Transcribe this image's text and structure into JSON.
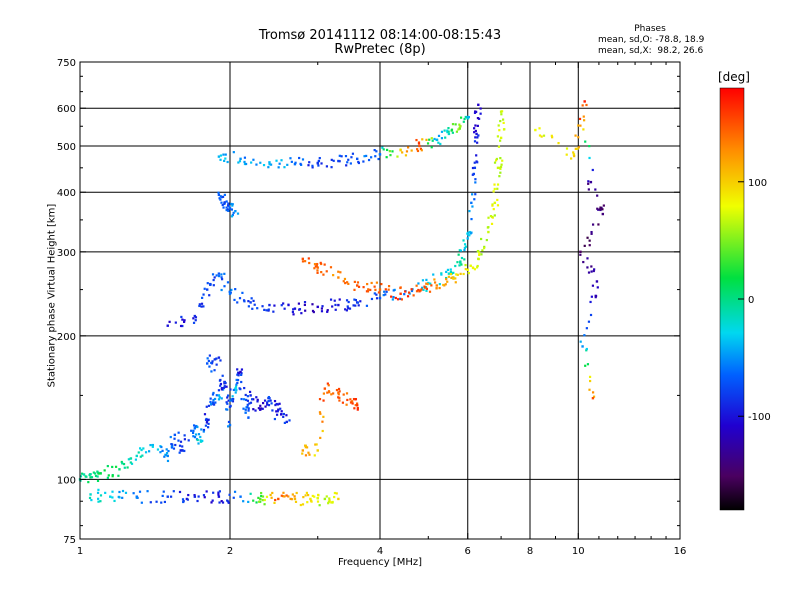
{
  "chart_data": {
    "type": "scatter",
    "title": "Tromsø 20141112 08:14:00-08:15:43",
    "subtitle": "RwPretec (8p)",
    "xlabel": "Frequency [MHz]",
    "ylabel": "Stationary phase Virtual Height [km]",
    "xscale": "log",
    "yscale": "log",
    "xlim": [
      1,
      16
    ],
    "ylim": [
      75,
      750
    ],
    "xticks": [
      "1",
      "2",
      "4",
      "6",
      "8",
      "10",
      "16"
    ],
    "xtick_values": [
      1,
      2,
      4,
      6,
      8,
      10,
      16
    ],
    "xgrid_values": [
      2,
      4,
      6,
      8,
      10
    ],
    "yticks": [
      "75",
      "100",
      "200",
      "300",
      "400",
      "500",
      "600",
      "750"
    ],
    "ytick_values": [
      75,
      100,
      200,
      300,
      400,
      500,
      600,
      750
    ],
    "ygrid_values": [
      100,
      200,
      300,
      400,
      500,
      600
    ],
    "grid": true,
    "colorbar": {
      "unit": "[deg]",
      "range": [
        -180,
        180
      ],
      "ticks": [
        "100",
        "0",
        "-100"
      ],
      "tick_values": [
        100,
        0,
        -100
      ],
      "colormap": "rainbow: black → purple → blue → cyan → green → yellow → orange → red"
    },
    "stats": {
      "title": "Phases",
      "line1": "mean, sd,O: -78.8, 18.9",
      "line2": "mean, sd,X:  98.2, 26.6"
    },
    "traces": [
      {
        "desc": "E/F1 scatter cluster",
        "points": [
          [
            1.0,
            100,
            -10
          ],
          [
            1.05,
            101,
            5
          ],
          [
            1.1,
            103,
            10
          ],
          [
            1.2,
            105,
            5
          ],
          [
            1.3,
            112,
            -20
          ],
          [
            1.4,
            118,
            -40
          ],
          [
            1.5,
            112,
            -55
          ],
          [
            1.55,
            124,
            -70
          ],
          [
            1.6,
            115,
            -90
          ],
          [
            1.7,
            128,
            -60
          ],
          [
            1.75,
            120,
            -20
          ],
          [
            1.8,
            133,
            -100
          ],
          [
            1.85,
            145,
            -70
          ],
          [
            1.9,
            150,
            -40
          ],
          [
            1.95,
            160,
            -110
          ],
          [
            2.0,
            142,
            -80
          ],
          [
            2.05,
            155,
            -30
          ],
          [
            2.1,
            168,
            -100
          ],
          [
            2.15,
            138,
            -60
          ],
          [
            2.2,
            150,
            -90
          ],
          [
            2.3,
            140,
            -110
          ],
          [
            2.4,
            148,
            -80
          ],
          [
            2.5,
            140,
            -100
          ],
          [
            2.6,
            132,
            -90
          ],
          [
            1.8,
            175,
            -70
          ],
          [
            1.9,
            180,
            -90
          ],
          [
            2.0,
            130,
            -60
          ]
        ]
      },
      {
        "desc": "E-layer low trace",
        "points": [
          [
            1.05,
            93,
            -20
          ],
          [
            1.15,
            92,
            -30
          ],
          [
            1.3,
            92,
            -60
          ],
          [
            1.5,
            92,
            -80
          ],
          [
            1.7,
            92,
            -90
          ],
          [
            1.9,
            92,
            -100
          ],
          [
            2.1,
            92,
            -60
          ],
          [
            2.3,
            91,
            40
          ],
          [
            2.5,
            91,
            150
          ],
          [
            2.7,
            91,
            110
          ],
          [
            2.9,
            91,
            90
          ],
          [
            3.1,
            91,
            60
          ],
          [
            3.3,
            91,
            100
          ]
        ]
      },
      {
        "desc": "Sporadic short traces",
        "points": [
          [
            2.8,
            115,
            120
          ],
          [
            3.0,
            115,
            100
          ],
          [
            3.1,
            155,
            150
          ],
          [
            3.3,
            152,
            140
          ],
          [
            3.5,
            145,
            150
          ],
          [
            3.6,
            143,
            160
          ]
        ]
      },
      {
        "desc": "F2 O-mode lower trace",
        "points": [
          [
            1.5,
            210,
            -100
          ],
          [
            1.7,
            220,
            -90
          ],
          [
            1.8,
            250,
            -80
          ],
          [
            1.9,
            270,
            -70
          ],
          [
            2.0,
            245,
            -60
          ],
          [
            2.2,
            235,
            -80
          ],
          [
            2.4,
            232,
            -90
          ],
          [
            2.7,
            228,
            -100
          ],
          [
            3.0,
            230,
            -110
          ],
          [
            3.3,
            232,
            -100
          ],
          [
            3.6,
            235,
            -90
          ],
          [
            4.0,
            240,
            -70
          ],
          [
            4.5,
            248,
            -50
          ],
          [
            5.0,
            258,
            -30
          ],
          [
            5.5,
            270,
            -20
          ],
          [
            5.8,
            285,
            -10
          ],
          [
            6.0,
            320,
            -40
          ],
          [
            6.1,
            380,
            -60
          ],
          [
            6.2,
            450,
            -80
          ],
          [
            6.25,
            530,
            -100
          ],
          [
            6.3,
            610,
            -110
          ]
        ]
      },
      {
        "desc": "F2 X-mode trace",
        "points": [
          [
            2.8,
            290,
            150
          ],
          [
            3.0,
            278,
            140
          ],
          [
            3.3,
            265,
            130
          ],
          [
            3.6,
            255,
            150
          ],
          [
            4.0,
            250,
            140
          ],
          [
            4.4,
            245,
            160
          ],
          [
            4.8,
            248,
            150
          ],
          [
            5.2,
            255,
            130
          ],
          [
            5.6,
            265,
            110
          ],
          [
            6.0,
            275,
            80
          ],
          [
            6.3,
            290,
            70
          ],
          [
            6.6,
            330,
            70
          ],
          [
            6.8,
            380,
            75
          ],
          [
            6.9,
            450,
            70
          ],
          [
            7.0,
            520,
            75
          ],
          [
            7.0,
            590,
            70
          ]
        ]
      },
      {
        "desc": "Upper F trace",
        "points": [
          [
            1.9,
            475,
            -40
          ],
          [
            2.1,
            470,
            -50
          ],
          [
            2.4,
            462,
            -40
          ],
          [
            2.7,
            458,
            -60
          ],
          [
            3.0,
            460,
            -90
          ],
          [
            3.3,
            465,
            -80
          ],
          [
            3.6,
            470,
            -70
          ],
          [
            4.0,
            480,
            -60
          ],
          [
            4.4,
            490,
            100
          ],
          [
            4.8,
            500,
            150
          ],
          [
            5.2,
            515,
            -40
          ],
          [
            5.5,
            530,
            -20
          ],
          [
            5.8,
            550,
            60
          ],
          [
            6.0,
            575,
            -40
          ]
        ]
      },
      {
        "desc": "Vertical streak near 2 MHz",
        "points": [
          [
            1.9,
            395,
            -70
          ],
          [
            1.95,
            380,
            -80
          ],
          [
            2.0,
            370,
            -60
          ],
          [
            2.05,
            365,
            -50
          ]
        ]
      },
      {
        "desc": "Isolated high-frequency points",
        "points": [
          [
            8.2,
            540,
            80
          ],
          [
            9.8,
            480,
            90
          ],
          [
            10.3,
            620,
            170
          ],
          [
            10.6,
            420,
            -130
          ],
          [
            11.2,
            360,
            -140
          ],
          [
            10.1,
            300,
            -150
          ],
          [
            10.9,
            260,
            -120
          ],
          [
            10.2,
            190,
            -50
          ],
          [
            10.7,
            148,
            150
          ]
        ]
      }
    ]
  }
}
